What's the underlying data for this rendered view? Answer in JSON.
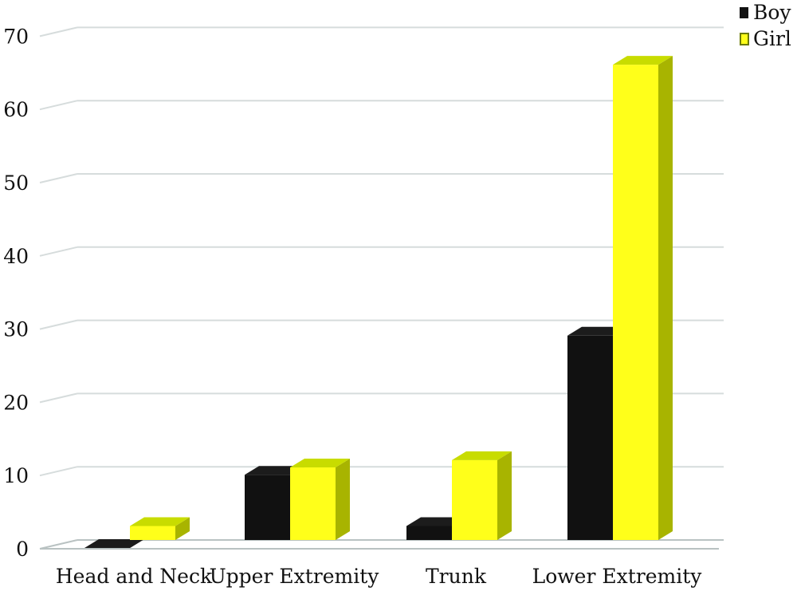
{
  "chart_data": {
    "type": "bar",
    "title": "",
    "xlabel": "",
    "ylabel": "",
    "categories": [
      "Head and Neck",
      "Upper Extremity",
      "Trunk",
      "Lower Extremity"
    ],
    "series": [
      {
        "name": "Boy",
        "values": [
          0,
          10,
          3,
          29
        ],
        "color": "#111111"
      },
      {
        "name": "Girl",
        "values": [
          3,
          11,
          12,
          66
        ],
        "color": "#ffff1a"
      }
    ],
    "ylim": [
      0,
      70
    ],
    "yticks": [
      0,
      10,
      20,
      30,
      40,
      50,
      60,
      70
    ],
    "grid": true,
    "style": "3d-columns",
    "legend_position": "top-right",
    "colors": {
      "boy_front": "#111111",
      "boy_side": "#000000",
      "boy_top": "#1c1c1c",
      "girl_front": "#ffff1a",
      "girl_side": "#a8b400",
      "girl_top": "#c8dc00",
      "grid": "#d6dcdc",
      "floor": "#b9c2c2"
    }
  }
}
